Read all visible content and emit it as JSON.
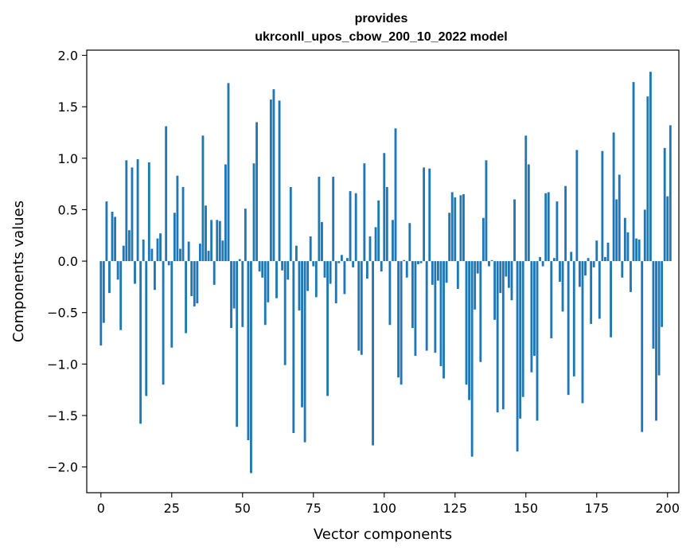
{
  "chart_data": {
    "type": "bar",
    "title": "provides",
    "subtitle": "ukrconll_upos_cbow_200_10_2022 model",
    "xlabel": "Vector components",
    "ylabel": "Components values",
    "xlim": [
      -5,
      204
    ],
    "ylim": [
      -2.25,
      2.05
    ],
    "xticks": [
      0,
      25,
      50,
      75,
      100,
      125,
      150,
      175,
      200
    ],
    "xtick_labels": [
      "0",
      "25",
      "50",
      "75",
      "100",
      "125",
      "150",
      "175",
      "200"
    ],
    "yticks": [
      -2.0,
      -1.5,
      -1.0,
      -0.5,
      0.0,
      0.5,
      1.0,
      1.5,
      2.0
    ],
    "ytick_labels": [
      "−2.0",
      "−1.5",
      "−1.0",
      "−0.5",
      "0.0",
      "0.5",
      "1.0",
      "1.5",
      "2.0"
    ],
    "grid": false,
    "bar_color": "#1f77b4",
    "values": [
      -0.82,
      -0.6,
      0.58,
      -0.31,
      0.48,
      0.43,
      -0.18,
      -0.67,
      0.15,
      0.98,
      0.3,
      0.91,
      -0.22,
      0.99,
      -1.58,
      0.21,
      -1.31,
      0.96,
      0.12,
      -0.28,
      0.22,
      0.27,
      -1.2,
      1.31,
      -0.04,
      -0.84,
      0.47,
      0.83,
      0.12,
      0.72,
      -0.7,
      0.19,
      -0.34,
      -0.44,
      -0.41,
      0.17,
      1.22,
      0.54,
      0.1,
      0.4,
      -0.23,
      0.4,
      0.39,
      0.2,
      0.94,
      1.73,
      -0.65,
      -0.46,
      -1.61,
      0.02,
      -0.64,
      0.51,
      -1.74,
      -2.06,
      0.95,
      1.35,
      -0.1,
      -0.16,
      -0.62,
      -0.4,
      1.57,
      1.67,
      -0.36,
      1.56,
      -0.09,
      -1.01,
      -0.18,
      0.72,
      -1.67,
      0.15,
      -0.48,
      -1.42,
      -1.76,
      -0.29,
      0.24,
      -0.05,
      -0.35,
      0.82,
      0.38,
      -0.16,
      -1.31,
      -0.22,
      0.82,
      -0.41,
      -0.02,
      0.06,
      -0.32,
      0.03,
      0.68,
      -0.06,
      0.66,
      -0.87,
      -0.91,
      0.95,
      -0.17,
      0.24,
      -1.79,
      0.33,
      0.59,
      -0.1,
      1.05,
      0.72,
      -0.62,
      0.4,
      1.29,
      -1.13,
      -1.2,
      0.01,
      -0.16,
      0.37,
      -0.65,
      -0.92,
      -0.03,
      -0.02,
      0.91,
      -0.87,
      0.9,
      -0.23,
      -0.89,
      -0.19,
      -1.02,
      -1.14,
      -0.21,
      0.47,
      0.67,
      0.62,
      -0.27,
      0.64,
      0.65,
      -1.2,
      -1.35,
      -1.9,
      -0.47,
      -0.12,
      -0.98,
      0.42,
      0.98,
      -0.05,
      0.01,
      -0.57,
      -1.47,
      -0.31,
      -1.44,
      -0.15,
      -0.26,
      -0.38,
      0.6,
      -1.85,
      -1.53,
      -1.32,
      1.22,
      0.94,
      -1.08,
      -0.92,
      -1.55,
      0.04,
      -0.05,
      0.66,
      0.67,
      -0.75,
      0.03,
      0.58,
      -0.2,
      -0.49,
      0.73,
      -1.3,
      0.09,
      -1.12,
      1.08,
      -0.25,
      -1.38,
      -0.14,
      0.03,
      -0.61,
      -0.06,
      0.2,
      -0.56,
      1.07,
      0.04,
      0.18,
      -0.74,
      1.25,
      0.6,
      0.84,
      -0.16,
      0.42,
      0.28,
      -0.3,
      1.74,
      0.22,
      0.21,
      -1.66,
      0.5,
      1.6,
      1.84,
      -0.85,
      -1.55,
      -1.11,
      -0.64,
      1.1,
      0.63,
      1.32
    ]
  }
}
